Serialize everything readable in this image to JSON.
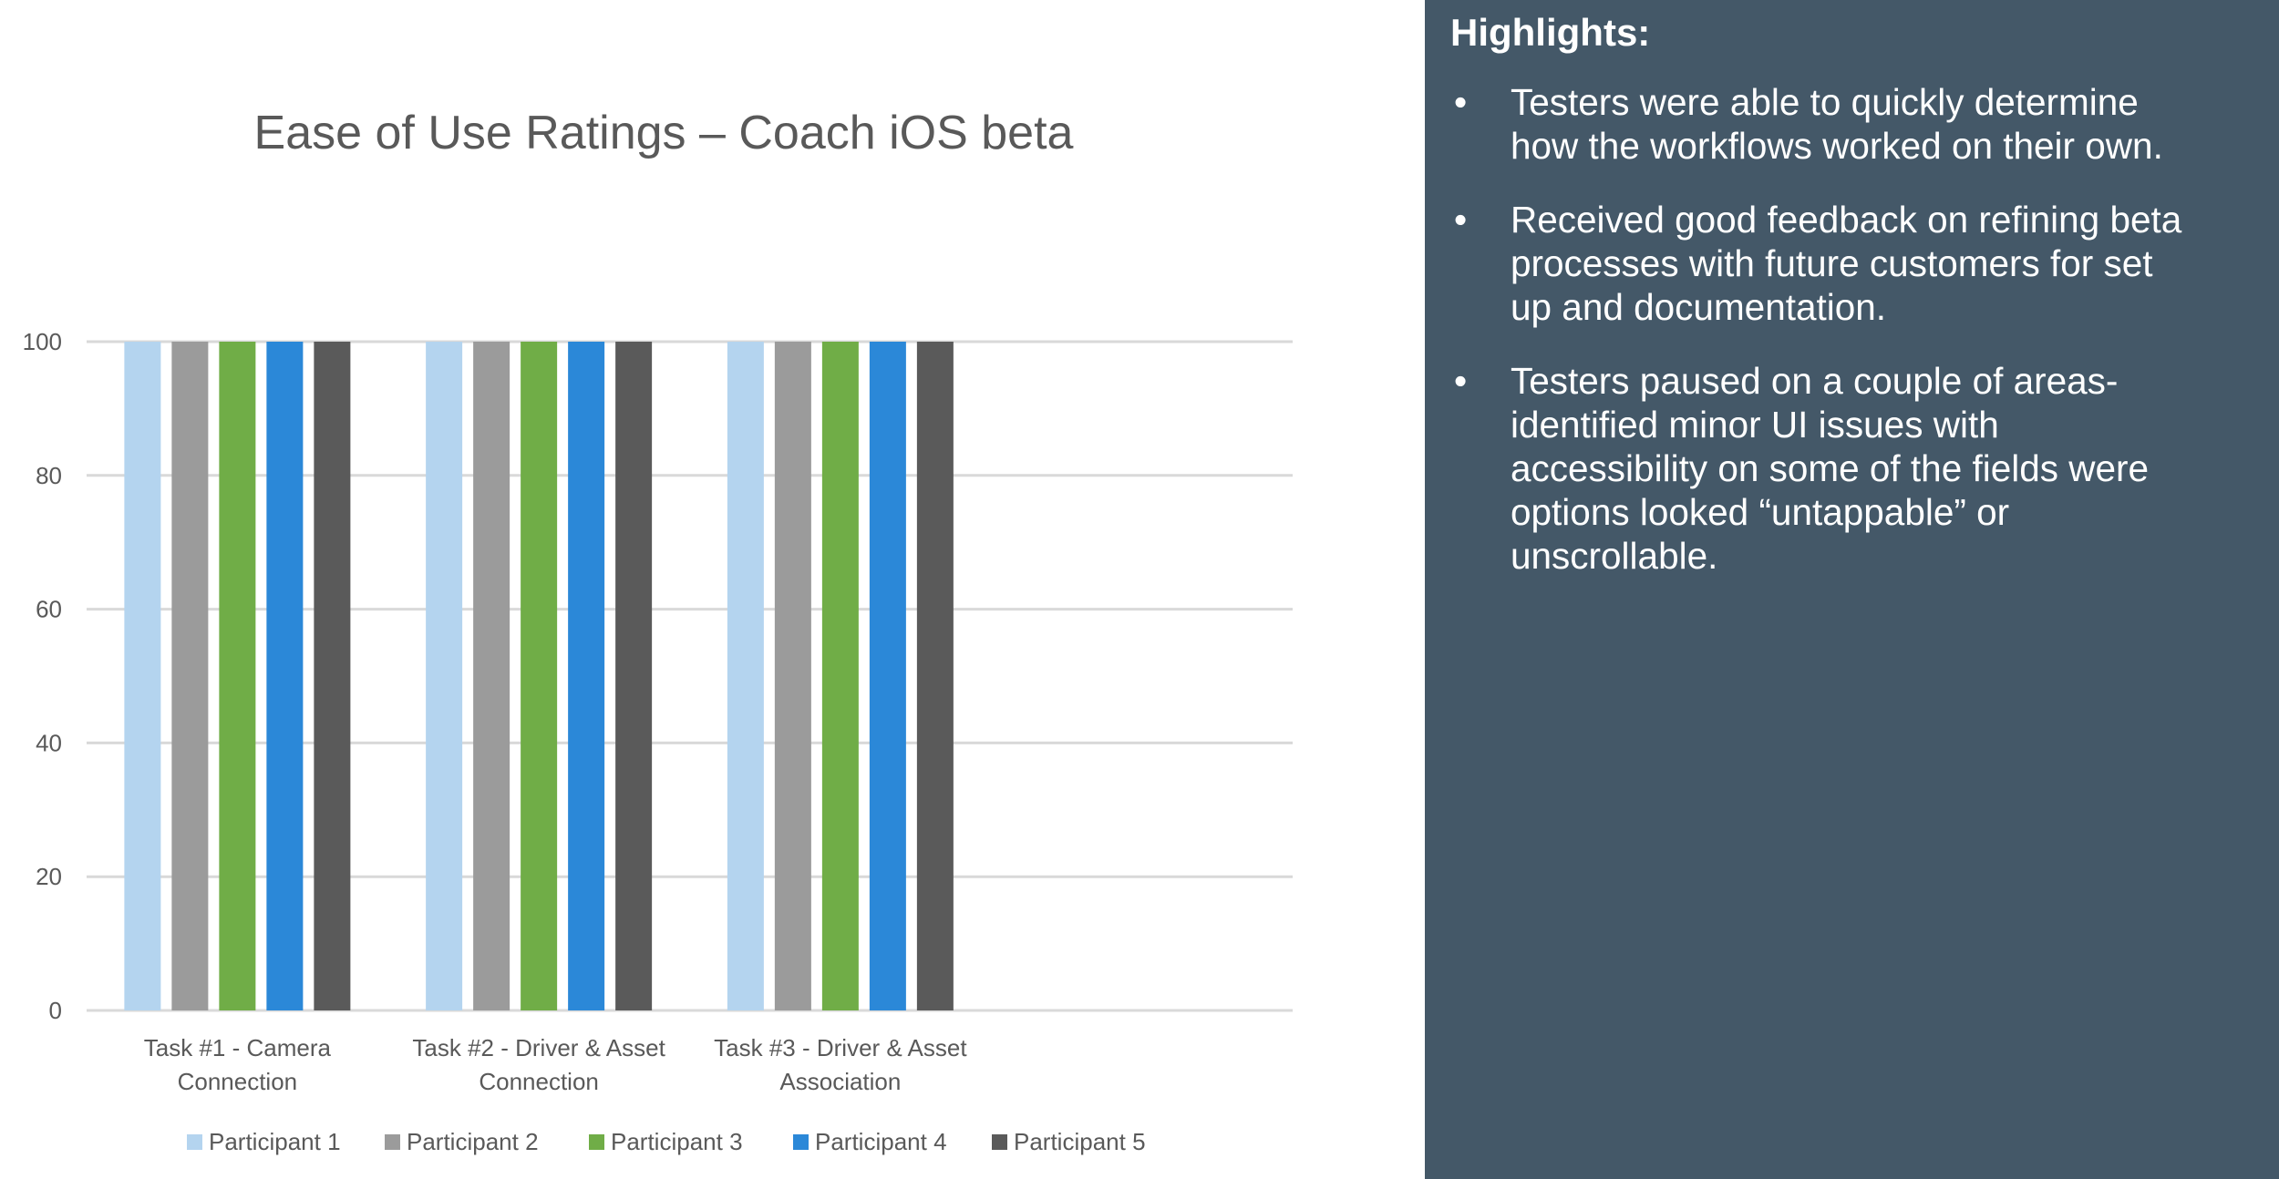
{
  "colors": {
    "panel_bg": "#445868",
    "grid": "#d9d9d9",
    "axis_text": "#595959",
    "title_text": "#595959"
  },
  "chart_data": {
    "type": "bar",
    "title": "Ease of Use Ratings – Coach iOS beta",
    "xlabel": "",
    "ylabel": "",
    "ylim": [
      0,
      100
    ],
    "yticks": [
      0,
      20,
      40,
      60,
      80,
      100
    ],
    "grid": true,
    "legend_position": "bottom",
    "category_slots": 4,
    "categories": [
      [
        "Task #1 - Camera",
        "Connection"
      ],
      [
        "Task #2 - Driver & Asset",
        "Connection"
      ],
      [
        "Task #3 - Driver & Asset",
        "Association"
      ]
    ],
    "series": [
      {
        "name": "Participant 1",
        "color": "#b4d4ef",
        "values": [
          100,
          100,
          100
        ]
      },
      {
        "name": "Participant 2",
        "color": "#9b9b9b",
        "values": [
          100,
          100,
          100
        ]
      },
      {
        "name": "Participant 3",
        "color": "#70ad47",
        "values": [
          100,
          100,
          100
        ]
      },
      {
        "name": "Participant 4",
        "color": "#2b88d8",
        "values": [
          100,
          100,
          100
        ]
      },
      {
        "name": "Participant 5",
        "color": "#5a5a5a",
        "values": [
          100,
          100,
          100
        ]
      }
    ]
  },
  "highlights": {
    "title": "Highlights:",
    "bullet_char": "•",
    "items": [
      {
        "lines": [
          "Testers were able to quickly determine",
          "how the workflows worked on their own."
        ]
      },
      {
        "lines": [
          "Received good feedback on refining beta",
          "processes with future customers for set",
          "up and documentation."
        ]
      },
      {
        "lines": [
          "Testers paused on a couple of areas-",
          "identified minor UI  issues with",
          "accessibility on some of the fields were",
          "options looked “untappable” or",
          "unscrollable."
        ]
      }
    ]
  }
}
